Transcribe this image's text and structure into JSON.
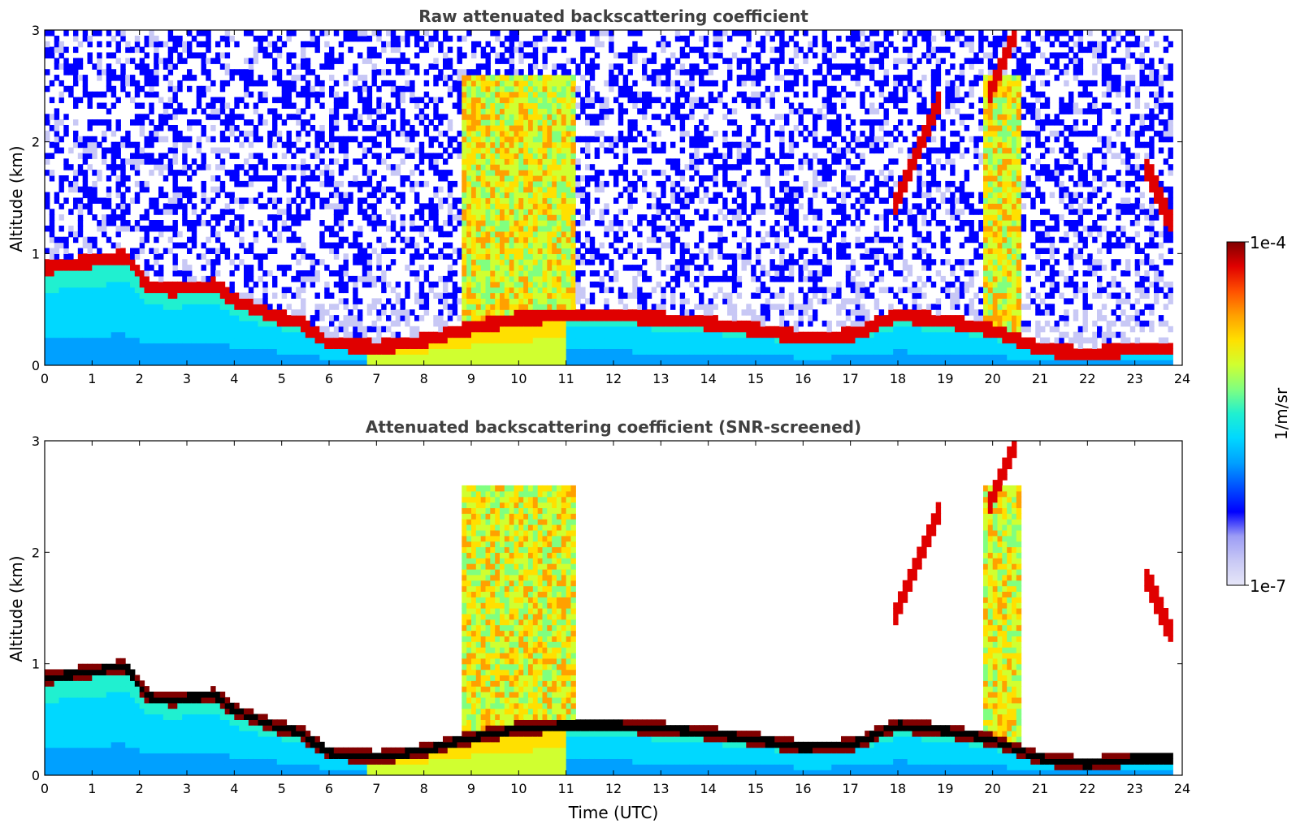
{
  "figure": {
    "xlabel": "Time (UTC)",
    "colorbar": {
      "label": "1/m/sr",
      "max_label": "1e-4",
      "min_label": "1e-7",
      "scale": "log",
      "colormap": "jet",
      "colors": [
        "#e6e6f8",
        "#c8c8f5",
        "#9c9cf5",
        "#0000ff",
        "#0050ff",
        "#00a0ff",
        "#00d8ff",
        "#20f0d0",
        "#80ff80",
        "#d0ff30",
        "#ffe000",
        "#ffa000",
        "#ff5000",
        "#e00000",
        "#800000"
      ]
    }
  },
  "chart_data": [
    {
      "type": "heatmap",
      "title": "Raw attenuated backscattering coefficient",
      "xlabel": "",
      "ylabel": "Altitude (km)",
      "xlim": [
        0,
        24
      ],
      "ylim": [
        0,
        3
      ],
      "x_ticks": [
        "0",
        "1",
        "2",
        "3",
        "4",
        "5",
        "6",
        "7",
        "8",
        "9",
        "10",
        "11",
        "12",
        "13",
        "14",
        "15",
        "16",
        "17",
        "18",
        "19",
        "20",
        "21",
        "22",
        "23",
        "24"
      ],
      "y_ticks": [
        "0",
        "1",
        "2",
        "3"
      ],
      "boundary_layer_top_km": [
        [
          0.0,
          0.87
        ],
        [
          0.8,
          0.92
        ],
        [
          1.7,
          0.98
        ],
        [
          2.2,
          0.7
        ],
        [
          2.7,
          0.68
        ],
        [
          3.6,
          0.72
        ],
        [
          4.0,
          0.58
        ],
        [
          5.0,
          0.42
        ],
        [
          5.4,
          0.38
        ],
        [
          6.0,
          0.2
        ],
        [
          7.0,
          0.16
        ],
        [
          8.0,
          0.22
        ],
        [
          8.8,
          0.32
        ],
        [
          10.0,
          0.42
        ],
        [
          11.0,
          0.45
        ],
        [
          12.0,
          0.45
        ],
        [
          13.0,
          0.42
        ],
        [
          14.0,
          0.38
        ],
        [
          15.0,
          0.32
        ],
        [
          16.0,
          0.25
        ],
        [
          17.0,
          0.27
        ],
        [
          18.0,
          0.45
        ],
        [
          19.0,
          0.4
        ],
        [
          20.0,
          0.32
        ],
        [
          21.0,
          0.15
        ],
        [
          22.0,
          0.1
        ],
        [
          23.0,
          0.15
        ],
        [
          23.75,
          0.15
        ]
      ],
      "elevated_layers_km": [
        {
          "x": [
            17.9,
            18.9
          ],
          "y": [
            1.4,
            2.4
          ]
        },
        {
          "x": [
            19.9,
            20.5
          ],
          "y": [
            2.4,
            3.0
          ]
        },
        {
          "x": [
            23.2,
            23.75
          ],
          "y": [
            1.8,
            1.3
          ]
        }
      ],
      "data_end_hour": 23.75
    },
    {
      "type": "heatmap",
      "title": "Attenuated backscattering coefficient (SNR-screened)",
      "xlabel": "Time (UTC)",
      "ylabel": "Altitude (km)",
      "xlim": [
        0,
        24
      ],
      "ylim": [
        0,
        3
      ],
      "x_ticks": [
        "0",
        "1",
        "2",
        "3",
        "4",
        "5",
        "6",
        "7",
        "8",
        "9",
        "10",
        "11",
        "12",
        "13",
        "14",
        "15",
        "16",
        "17",
        "18",
        "19",
        "20",
        "21",
        "22",
        "23",
        "24"
      ],
      "y_ticks": [
        "0",
        "1",
        "2",
        "3"
      ],
      "snr_screened": true,
      "data_end_hour": 23.75
    }
  ]
}
